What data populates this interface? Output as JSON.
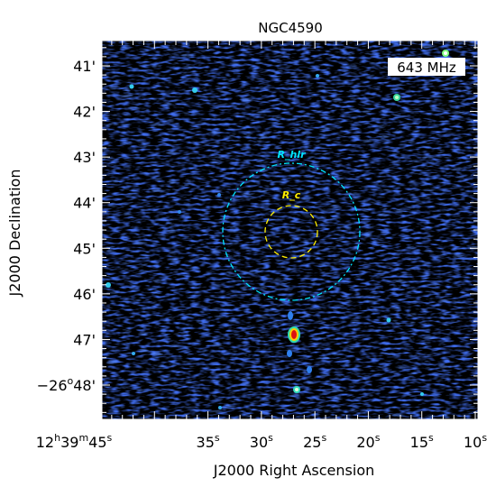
{
  "title": "NGC4590",
  "frequency_label": "643 MHz",
  "colors": {
    "background": "#000000",
    "noise_blue": "#1a2fd6",
    "circle_hlr": "#00e5ff",
    "circle_c": "#ffee00",
    "annotation_hlr": "#00e5ff",
    "annotation_c": "#ffee00"
  },
  "axes": {
    "xlabel": "J2000 Right Ascension",
    "ylabel": "J2000 Declination",
    "x_ticks": [
      {
        "value": 45,
        "label_h": "12",
        "label_m": "39",
        "label_s": "45",
        "full": true
      },
      {
        "value": 35,
        "label_s": "35"
      },
      {
        "value": 30,
        "label_s": "30"
      },
      {
        "value": 25,
        "label_s": "25"
      },
      {
        "value": 20,
        "label_s": "20"
      },
      {
        "value": 15,
        "label_s": "15"
      },
      {
        "value": 10,
        "label_s": "10"
      }
    ],
    "y_ticks": [
      {
        "value": 41,
        "label": "41'"
      },
      {
        "value": 42,
        "label": "42'"
      },
      {
        "value": 43,
        "label": "43'"
      },
      {
        "value": 44,
        "label": "44'"
      },
      {
        "value": 45,
        "label": "45'"
      },
      {
        "value": 46,
        "label": "46'"
      },
      {
        "value": 47,
        "label": "47'"
      },
      {
        "value": 48,
        "label_prefix": "−26",
        "label_sup": "o",
        "label_suffix": "48'",
        "full": true
      }
    ]
  },
  "annotations": {
    "r_hlr": "R_hlr",
    "r_c": "R_c"
  }
}
